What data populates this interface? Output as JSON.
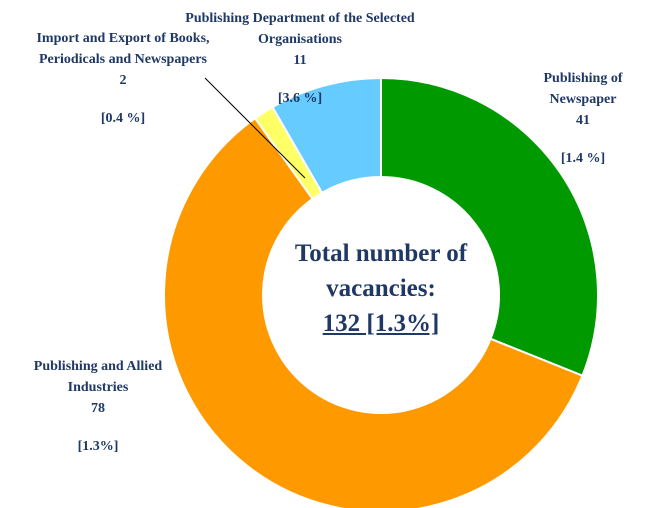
{
  "chart_data": {
    "type": "donut",
    "categories": [
      "Publishing of Newspaper",
      "Publishing and Allied Industries",
      "Import and Export of Books, Periodicals and Newspapers",
      "Publishing Department of the Selected Organisations"
    ],
    "values": [
      41,
      78,
      2,
      11
    ],
    "colors": [
      "#009900",
      "#ff9900",
      "#ffff66",
      "#66ccff"
    ],
    "rate_labels": [
      "[1.4 %]",
      "[1.3%]",
      "[0.4 %]",
      "[3.6 %]"
    ],
    "center_title": "Total number of vacancies:",
    "center_value": "132 [1.3%]"
  }
}
